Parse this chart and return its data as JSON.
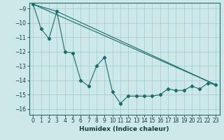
{
  "xlabel": "Humidex (Indice chaleur)",
  "ylabel": "",
  "bg_color": "#cce8e8",
  "grid_color": "#aacfcf",
  "line_color": "#1a6b6b",
  "xlim": [
    -0.5,
    23.5
  ],
  "ylim": [
    -16.4,
    -8.6
  ],
  "yticks": [
    -9,
    -10,
    -11,
    -12,
    -13,
    -14,
    -15,
    -16
  ],
  "xticks": [
    0,
    1,
    2,
    3,
    4,
    5,
    6,
    7,
    8,
    9,
    10,
    11,
    12,
    13,
    14,
    15,
    16,
    17,
    18,
    19,
    20,
    21,
    22,
    23
  ],
  "series1_x": [
    0,
    1,
    2,
    3,
    4,
    5,
    6,
    7,
    8,
    9,
    10,
    11,
    12,
    13,
    14,
    15,
    16,
    17,
    18,
    19,
    20,
    21,
    22,
    23
  ],
  "series1_y": [
    -8.7,
    -10.4,
    -11.1,
    -9.2,
    -12.0,
    -12.1,
    -14.0,
    -14.4,
    -13.0,
    -12.4,
    -14.8,
    -15.6,
    -15.1,
    -15.1,
    -15.1,
    -15.1,
    -15.0,
    -14.6,
    -14.7,
    -14.7,
    -14.4,
    -14.6,
    -14.2,
    -14.3
  ],
  "series2_x": [
    0,
    3,
    23
  ],
  "series2_y": [
    -8.7,
    -9.2,
    -14.3
  ],
  "series3_x": [
    0,
    23
  ],
  "series3_y": [
    -8.7,
    -14.3
  ],
  "tick_fontsize": 5.5,
  "xlabel_fontsize": 6.5,
  "marker_size": 2.2
}
